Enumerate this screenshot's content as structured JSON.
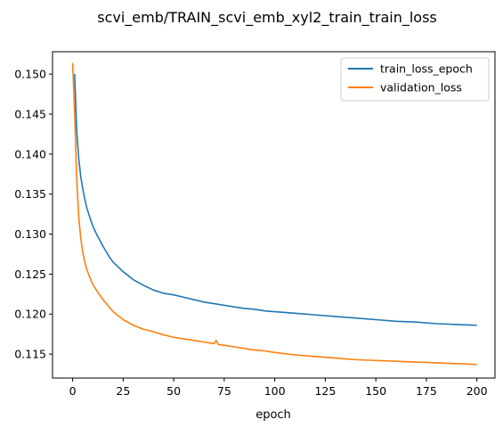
{
  "chart_data": {
    "type": "line",
    "title": "scvi_emb/TRAIN_scvi_emb_xyl2_train_train_loss",
    "xlabel": "epoch",
    "ylabel": "",
    "xlim": [
      -9.95,
      208.95
    ],
    "ylim": [
      0.112,
      0.1528
    ],
    "x_ticks": [
      0,
      25,
      50,
      75,
      100,
      125,
      150,
      175,
      200
    ],
    "y_ticks": [
      0.115,
      0.12,
      0.125,
      0.13,
      0.135,
      0.14,
      0.145,
      0.15
    ],
    "y_tick_labels": [
      "0.115",
      "0.120",
      "0.125",
      "0.130",
      "0.135",
      "0.140",
      "0.145",
      "0.150"
    ],
    "legend_position": "top-right",
    "grid": false,
    "series": [
      {
        "name": "train_loss_epoch",
        "color": "#1f77b4",
        "points": [
          [
            1,
            0.15
          ],
          [
            2,
            0.143
          ],
          [
            3,
            0.1395
          ],
          [
            4,
            0.1372
          ],
          [
            5,
            0.1357
          ],
          [
            6,
            0.1344
          ],
          [
            7,
            0.1333
          ],
          [
            8,
            0.1325
          ],
          [
            9,
            0.1317
          ],
          [
            10,
            0.131
          ],
          [
            12,
            0.1299
          ],
          [
            15,
            0.1285
          ],
          [
            18,
            0.1272
          ],
          [
            20,
            0.1265
          ],
          [
            25,
            0.1253
          ],
          [
            30,
            0.1243
          ],
          [
            35,
            0.1236
          ],
          [
            40,
            0.123
          ],
          [
            45,
            0.1226
          ],
          [
            50,
            0.1224
          ],
          [
            55,
            0.1221
          ],
          [
            60,
            0.1218
          ],
          [
            65,
            0.1215
          ],
          [
            70,
            0.1213
          ],
          [
            75,
            0.1211
          ],
          [
            80,
            0.1209
          ],
          [
            85,
            0.1207
          ],
          [
            90,
            0.1206
          ],
          [
            95,
            0.1204
          ],
          [
            100,
            0.1203
          ],
          [
            110,
            0.1201
          ],
          [
            120,
            0.1199
          ],
          [
            130,
            0.1197
          ],
          [
            140,
            0.1195
          ],
          [
            150,
            0.1193
          ],
          [
            160,
            0.1191
          ],
          [
            170,
            0.119
          ],
          [
            180,
            0.1188
          ],
          [
            190,
            0.1187
          ],
          [
            200,
            0.1186
          ]
        ]
      },
      {
        "name": "validation_loss",
        "color": "#ff7f0e",
        "points": [
          [
            0,
            0.1514
          ],
          [
            1,
            0.145
          ],
          [
            2,
            0.137
          ],
          [
            3,
            0.1322
          ],
          [
            4,
            0.1295
          ],
          [
            5,
            0.1278
          ],
          [
            6,
            0.1265
          ],
          [
            7,
            0.1256
          ],
          [
            8,
            0.1249
          ],
          [
            9,
            0.1243
          ],
          [
            10,
            0.1237
          ],
          [
            12,
            0.1229
          ],
          [
            15,
            0.1218
          ],
          [
            18,
            0.1209
          ],
          [
            20,
            0.1203
          ],
          [
            25,
            0.1193
          ],
          [
            30,
            0.1186
          ],
          [
            35,
            0.1181
          ],
          [
            40,
            0.1178
          ],
          [
            45,
            0.1174
          ],
          [
            50,
            0.1171
          ],
          [
            55,
            0.1169
          ],
          [
            60,
            0.1167
          ],
          [
            65,
            0.1165
          ],
          [
            70,
            0.1163
          ],
          [
            71,
            0.1167
          ],
          [
            72,
            0.1162
          ],
          [
            75,
            0.1161
          ],
          [
            80,
            0.1159
          ],
          [
            85,
            0.1157
          ],
          [
            90,
            0.1155
          ],
          [
            95,
            0.1154
          ],
          [
            100,
            0.1152
          ],
          [
            110,
            0.1149
          ],
          [
            120,
            0.1147
          ],
          [
            130,
            0.1145
          ],
          [
            140,
            0.1143
          ],
          [
            150,
            0.1142
          ],
          [
            160,
            0.1141
          ],
          [
            170,
            0.114
          ],
          [
            180,
            0.1139
          ],
          [
            190,
            0.1138
          ],
          [
            200,
            0.1137
          ]
        ]
      }
    ]
  }
}
